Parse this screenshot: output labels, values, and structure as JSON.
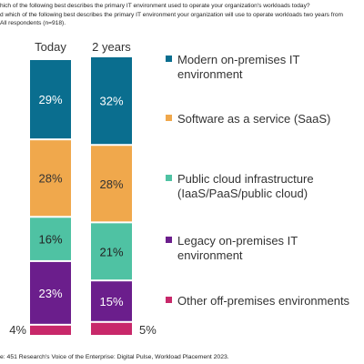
{
  "header": {
    "line1": "hich of the following best describes the primary IT environment used to operate your organization's workloads today?",
    "line2": "d which of the following best describes the primary IT environment your organization will use to operate workloads two years from",
    "line3": "All respondents (n=918)."
  },
  "source": "e: 451 Research's Voice of the Enterprise: Digital Pulse, Workload Placement 2023.",
  "colors": {
    "modern": "#0a6e8f",
    "saas": "#f0a84c",
    "public": "#4fc2a3",
    "legacy": "#6b1e8c",
    "other": "#c8286a"
  },
  "chart_data": {
    "type": "bar",
    "stacked": true,
    "categories": [
      "Today",
      "2 years"
    ],
    "series": [
      {
        "name": "Other off-premises environments",
        "values": [
          4,
          5
        ],
        "labels": [
          "4%",
          "5%"
        ]
      },
      {
        "name": "Legacy on-premises IT environment",
        "values": [
          23,
          15
        ],
        "labels": [
          "23%",
          "15%"
        ]
      },
      {
        "name": "Public cloud infrastructure (IaaS/PaaS/public cloud)",
        "values": [
          16,
          21
        ],
        "labels": [
          "16%",
          "21%"
        ]
      },
      {
        "name": "Software as a service (SaaS)",
        "values": [
          28,
          28
        ],
        "labels": [
          "28%",
          "28%"
        ]
      },
      {
        "name": "Modern on-premises IT environment",
        "values": [
          29,
          32
        ],
        "labels": [
          "29%",
          "32%"
        ]
      }
    ],
    "legend_position": "right",
    "title": "",
    "xlabel": "",
    "ylabel": ""
  },
  "legend": [
    {
      "label": "Modern on-premises IT environment",
      "color_key": "modern"
    },
    {
      "label": "Software as a service (SaaS)",
      "color_key": "saas"
    },
    {
      "label": "Public cloud infrastructure (IaaS/PaaS/public cloud)",
      "color_key": "public"
    },
    {
      "label": "Legacy on-premises IT environment",
      "color_key": "legacy"
    },
    {
      "label": "Other off-premises environments",
      "color_key": "other"
    }
  ]
}
